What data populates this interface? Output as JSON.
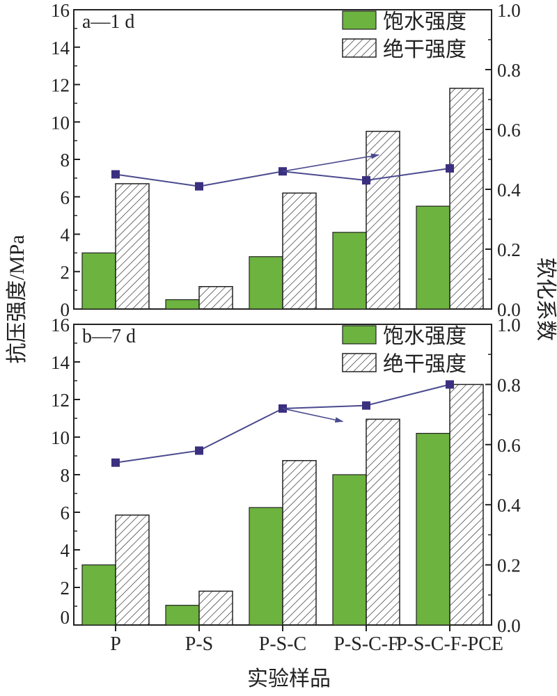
{
  "axis_labels": {
    "y_left": "抗压强度/MPa",
    "y_right": "软化系数",
    "x": "实验样品"
  },
  "legend": {
    "saturated": "饱水强度",
    "dry": "绝干强度"
  },
  "colors": {
    "saturated_fill": "#6db33f",
    "dry_stroke": "#333333",
    "line": "#4a4a8e",
    "marker": "#3b2f7f"
  },
  "chart_data": [
    {
      "type": "bar",
      "title": "a—1 d",
      "categories": [
        "P",
        "P-S",
        "P-S-C",
        "P-S-C-F",
        "P-S-C-F-PCE"
      ],
      "ylim": [
        0,
        16
      ],
      "y2lim": [
        0,
        1.0
      ],
      "yticks": [
        0,
        2,
        4,
        6,
        8,
        10,
        12,
        14,
        16
      ],
      "y2ticks": [
        "0.0",
        "0.2",
        "0.4",
        "0.6",
        "0.8",
        "1.0"
      ],
      "series": [
        {
          "name": "饱水强度",
          "values": [
            3.0,
            0.5,
            2.8,
            4.1,
            5.5
          ]
        },
        {
          "name": "绝干强度",
          "values": [
            6.7,
            1.2,
            6.2,
            9.5,
            11.8
          ]
        }
      ],
      "line": {
        "values": [
          0.45,
          0.41,
          0.46,
          0.43,
          0.47
        ]
      },
      "arrow": {
        "from_category": 2,
        "to_x": 3.15,
        "y": 0.515
      }
    },
    {
      "type": "bar",
      "title": "b—7 d",
      "categories": [
        "P",
        "P-S",
        "P-S-C",
        "P-S-C-F",
        "P-S-C-F-PCE"
      ],
      "ylim": [
        0,
        16
      ],
      "y2lim": [
        0,
        1.0
      ],
      "yticks": [
        0,
        2,
        4,
        6,
        8,
        10,
        12,
        14,
        16
      ],
      "y2ticks": [
        "0.0",
        "0.2",
        "0.4",
        "0.6",
        "0.8",
        "1.0"
      ],
      "series": [
        {
          "name": "饱水强度",
          "values": [
            3.2,
            1.05,
            6.25,
            8.0,
            10.2
          ]
        },
        {
          "name": "绝干强度",
          "values": [
            5.85,
            1.8,
            8.75,
            10.95,
            12.8
          ]
        }
      ],
      "line": {
        "values": [
          0.54,
          0.58,
          0.72,
          0.73,
          0.8
        ]
      },
      "arrow": {
        "from_category": 2,
        "to_x": 2.72,
        "y": 0.7
      }
    }
  ]
}
